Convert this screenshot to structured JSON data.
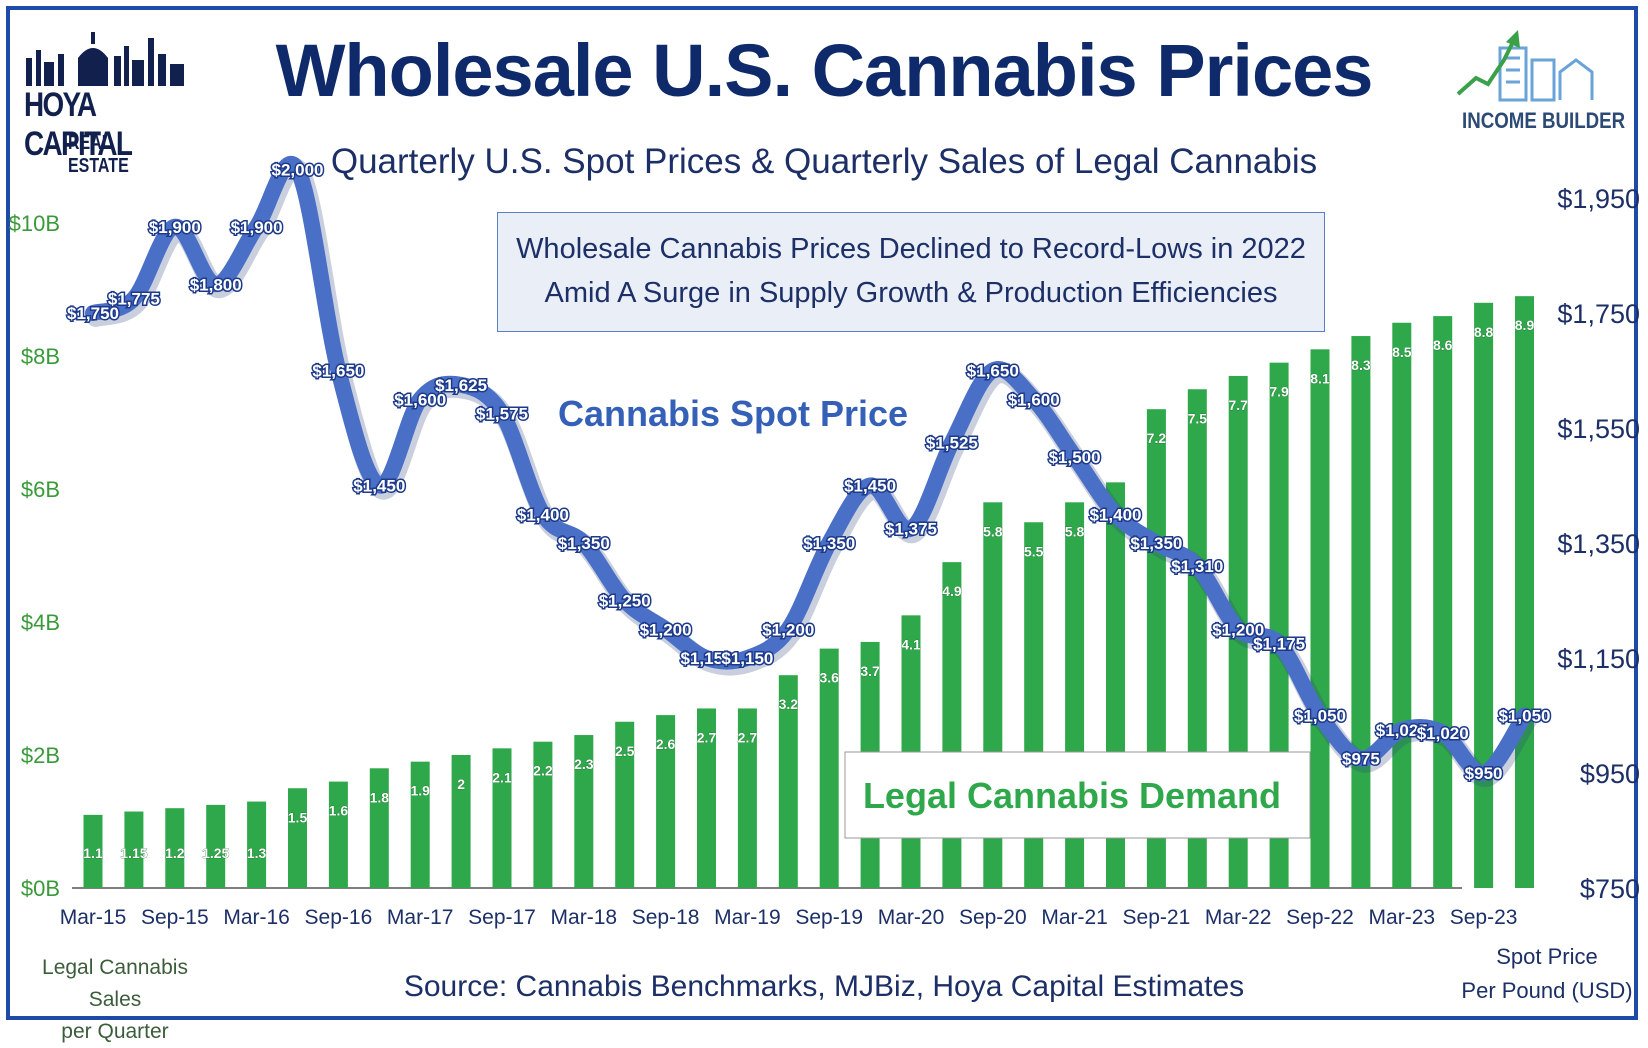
{
  "header": {
    "title": "Wholesale U.S. Cannabis Prices",
    "subtitle": "Quarterly U.S. Spot Prices & Quarterly Sales of Legal Cannabis",
    "callout_line1": "Wholesale Cannabis Prices Declined to Record-Lows in 2022",
    "callout_line2": "Amid A Surge in Supply Growth & Production Efficiencies"
  },
  "logos": {
    "left_brand": "HOYA CAPITAL",
    "left_sub": "REAL ESTATE",
    "right_brand": "INCOME BUILDER"
  },
  "footer": {
    "source": "Source: Cannabis Benchmarks, MJBiz, Hoya Capital Estimates",
    "left_caption_1": "Legal Cannabis Sales",
    "left_caption_2": "per Quarter",
    "right_caption_1": "Spot Price",
    "right_caption_2": "Per Pound (USD)"
  },
  "colors": {
    "bar": "#2ea84a",
    "line": "#4a6fc7",
    "title": "#0e2a6b",
    "left_axis": "#3a9a3a"
  },
  "chart_data": {
    "type": "bar+line",
    "categories": [
      "Mar-15",
      "Jun-15",
      "Sep-15",
      "Dec-15",
      "Mar-16",
      "Jun-16",
      "Sep-16",
      "Dec-16",
      "Mar-17",
      "Jun-17",
      "Sep-17",
      "Dec-17",
      "Mar-18",
      "Jun-18",
      "Sep-18",
      "Dec-18",
      "Mar-19",
      "Jun-19",
      "Sep-19",
      "Dec-19",
      "Mar-20",
      "Jun-20",
      "Sep-20",
      "Dec-20",
      "Mar-21",
      "Jun-21",
      "Sep-21",
      "Dec-21",
      "Mar-22",
      "Jun-22",
      "Sep-22",
      "Dec-22",
      "Mar-23",
      "Jun-23",
      "Sep-23",
      "Dec-23"
    ],
    "x_tick_labels": [
      "Mar-15",
      "Sep-15",
      "Mar-16",
      "Sep-16",
      "Mar-17",
      "Sep-17",
      "Mar-18",
      "Sep-18",
      "Mar-19",
      "Sep-19",
      "Mar-20",
      "Sep-20",
      "Mar-21",
      "Sep-21",
      "Mar-22",
      "Sep-22",
      "Mar-23",
      "Sep-23"
    ],
    "series": [
      {
        "name": "Legal Cannabis Demand",
        "kind": "bar",
        "axis": "left",
        "values": [
          1.1,
          1.15,
          1.2,
          1.25,
          1.3,
          1.5,
          1.6,
          1.8,
          1.9,
          2,
          2.1,
          2.2,
          2.3,
          2.5,
          2.6,
          2.7,
          2.7,
          3.2,
          3.6,
          3.7,
          4.1,
          4.9,
          5.8,
          5.5,
          5.8,
          6.1,
          7.2,
          7.5,
          7.7,
          7.9,
          8.1,
          8.3,
          8.5,
          8.6,
          8.8,
          8.9
        ],
        "labels": [
          "1.1",
          "1.15",
          "1.2",
          "1.25",
          "1.3",
          "1.5",
          "1.6",
          "1.8",
          "1.9",
          "2",
          "2.1",
          "2.2",
          "2.3",
          "2.5",
          "2.6",
          "2.7",
          "2.7",
          "3.2",
          "3.6",
          "3.7",
          "4.1",
          "4.9",
          "5.8",
          "5.5",
          "5.8",
          "",
          "7.2",
          "7.5",
          "7.7",
          "7.9",
          "8.1",
          "8.3",
          "8.5",
          "8.6",
          "8.8",
          "8.9"
        ]
      },
      {
        "name": "Cannabis Spot Price",
        "kind": "line",
        "axis": "right",
        "values": [
          1750,
          1775,
          1900,
          1800,
          1900,
          2000,
          1650,
          1450,
          1600,
          1625,
          1575,
          1400,
          1350,
          1250,
          1200,
          1150,
          1150,
          1200,
          1350,
          1450,
          1375,
          1525,
          1650,
          1600,
          1500,
          1400,
          1350,
          1310,
          1200,
          1175,
          1050,
          975,
          1025,
          1020,
          950,
          1050
        ],
        "labels": [
          "$1,750",
          "$1,775",
          "$1,900",
          "$1,800",
          "$1,900",
          "$2,000",
          "$1,650",
          "$1,450",
          "$1,600",
          "$1,625",
          "$1,575",
          "$1,400",
          "$1,350",
          "$1,250",
          "$1,200",
          "$1,150",
          "$1,150",
          "$1,200",
          "$1,350",
          "$1,450",
          "$1,375",
          "$1,525",
          "$1,650",
          "$1,600",
          "$1,500",
          "$1,400",
          "$1,350",
          "$1,310",
          "$1,200",
          "$1,175",
          "$1,050",
          "$975",
          "$1,025",
          "$1,020",
          "$950",
          "$1,050"
        ]
      }
    ],
    "left_axis": {
      "min": 0,
      "max": 10.7,
      "ticks": [
        0,
        2,
        4,
        6,
        8,
        10
      ],
      "tick_labels": [
        "$0B",
        "$2B",
        "$4B",
        "$6B",
        "$8B",
        "$10B"
      ]
    },
    "right_axis": {
      "min": 750,
      "max": 2000,
      "ticks": [
        750,
        950,
        1150,
        1350,
        1550,
        1750,
        1950
      ],
      "tick_labels": [
        "$750",
        "$950",
        "$1,150",
        "$1,350",
        "$1,550",
        "$1,750",
        "$1,950"
      ]
    },
    "annotations": {
      "line_label": "Cannabis Spot Price",
      "bar_label": "Legal Cannabis Demand"
    }
  }
}
